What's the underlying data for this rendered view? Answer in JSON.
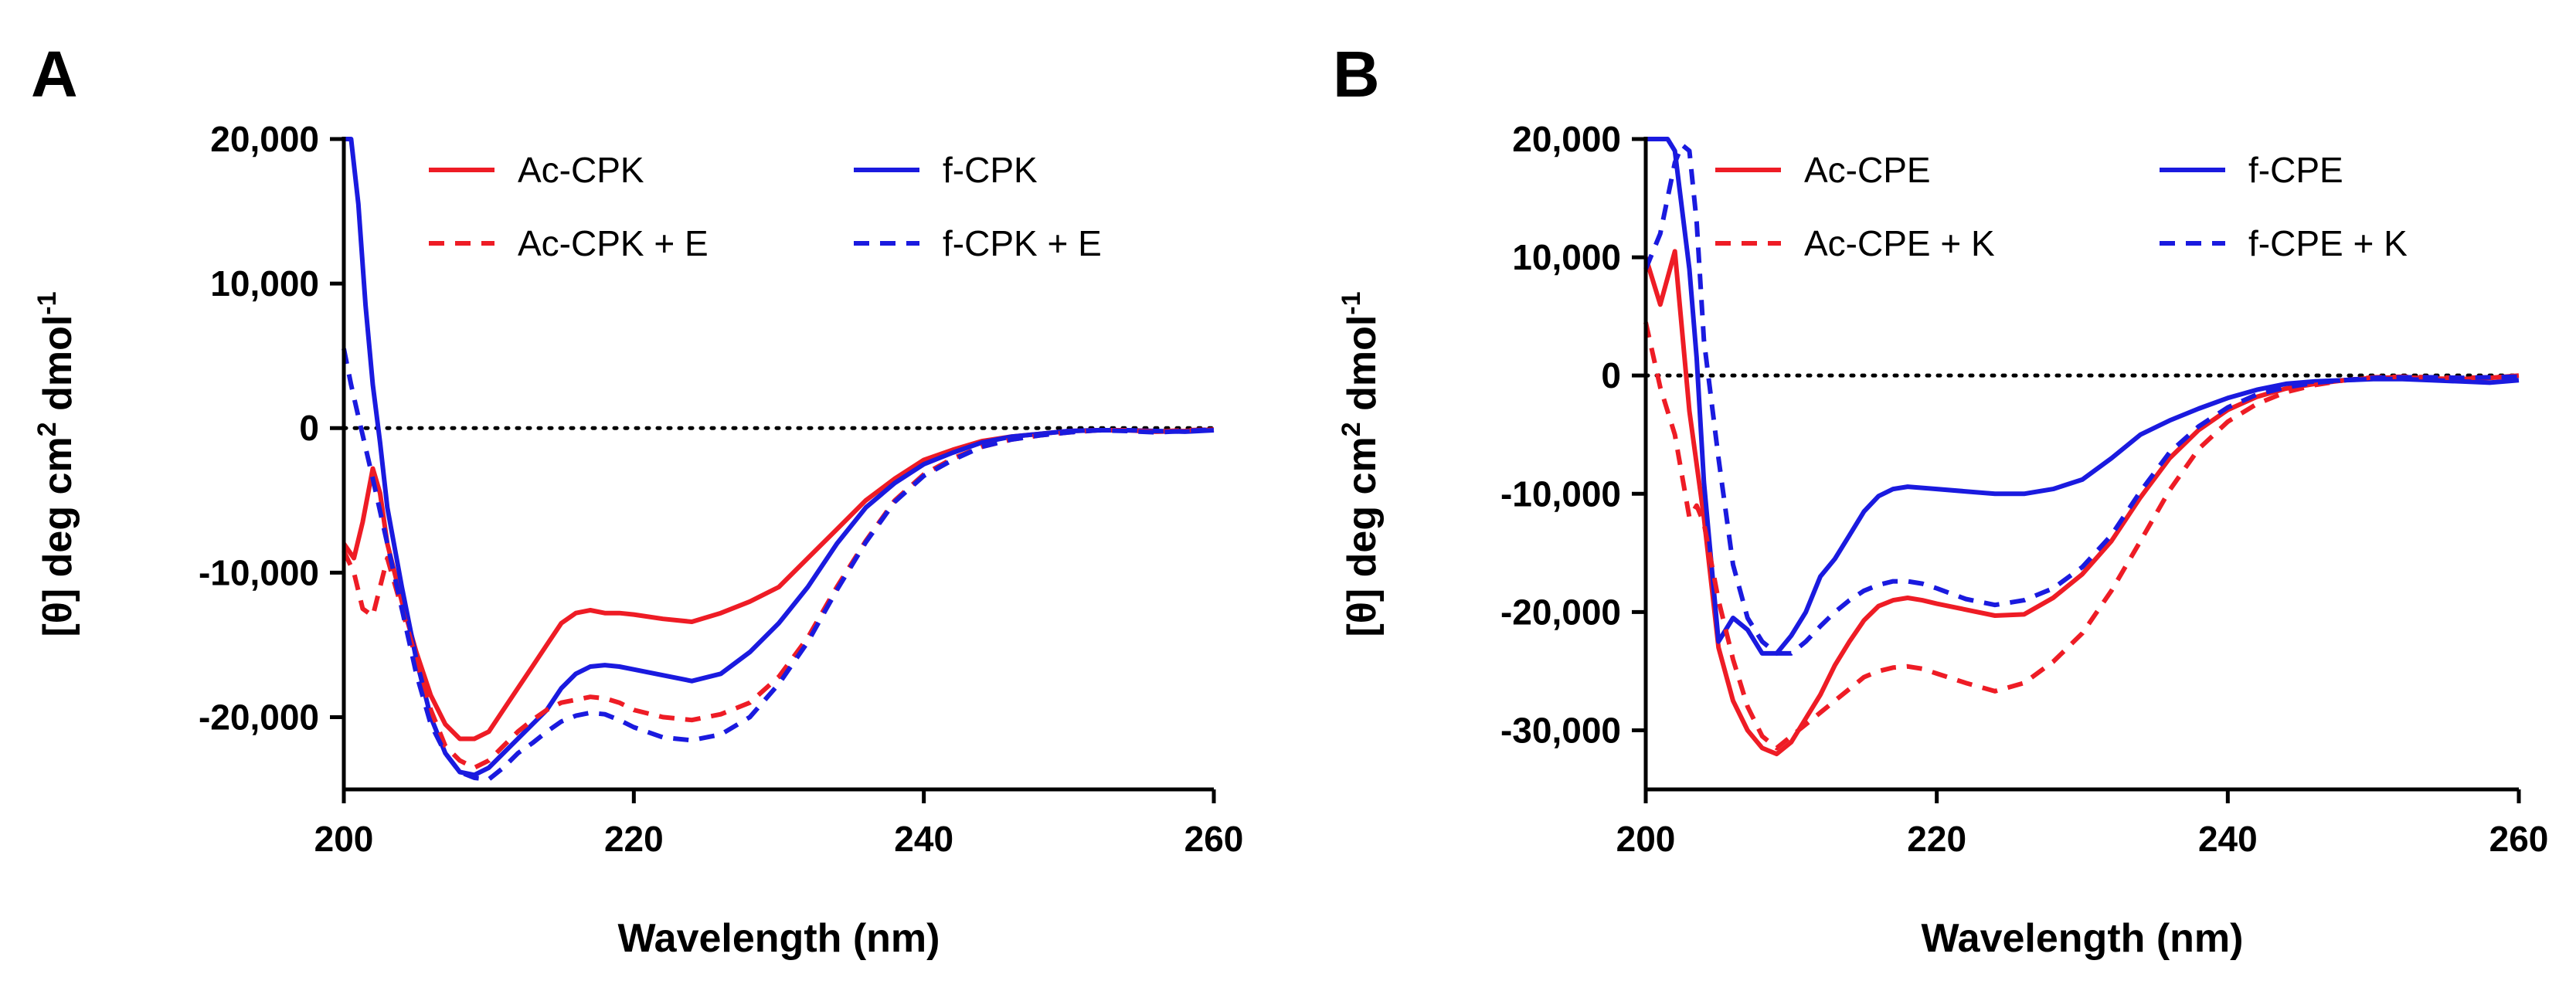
{
  "chart_data": [
    {
      "panel": "A",
      "type": "line",
      "title": "",
      "xlabel": "Wavelength (nm)",
      "ylabel": "[θ] deg cm",
      "ylabel_sup1": "2",
      "ylabel_mid": " dmol",
      "ylabel_sup2": "-1",
      "xlim": [
        200,
        260
      ],
      "ylim": [
        -25000,
        20000
      ],
      "xticks": [
        200,
        220,
        240,
        260
      ],
      "xtick_labels": [
        "200",
        "220",
        "240",
        "260"
      ],
      "yticks": [
        20000,
        10000,
        0,
        -10000,
        -20000
      ],
      "ytick_labels": [
        "20,000",
        "10,000",
        "0",
        "-10,000",
        "-20,000"
      ],
      "reference_line": 0,
      "legend": "top",
      "series": [
        {
          "name": "Ac-CPK",
          "color": "#ee1c25",
          "dash": "solid",
          "x": [
            200,
            200.7,
            201.3,
            202,
            202.5,
            203,
            204,
            205,
            206,
            207,
            208,
            209,
            210,
            211,
            212,
            213,
            214,
            215,
            216,
            217,
            218,
            219,
            220,
            222,
            224,
            226,
            228,
            230,
            232,
            234,
            236,
            238,
            240,
            242,
            244,
            246,
            248,
            250,
            252,
            254,
            256,
            258,
            260
          ],
          "y": [
            -8000,
            -9000,
            -6500,
            -2800,
            -4500,
            -8000,
            -12000,
            -15500,
            -18500,
            -20500,
            -21500,
            -21500,
            -21000,
            -19500,
            -18000,
            -16500,
            -15000,
            -13500,
            -12800,
            -12600,
            -12800,
            -12800,
            -12900,
            -13200,
            -13400,
            -12800,
            -12000,
            -11000,
            -9000,
            -7000,
            -5000,
            -3500,
            -2200,
            -1500,
            -900,
            -600,
            -400,
            -200,
            -150,
            -150,
            -250,
            -200,
            -100
          ]
        },
        {
          "name": "f-CPK",
          "color": "#1a1adf",
          "dash": "solid",
          "x": [
            200,
            200.5,
            201,
            201.5,
            202,
            202.5,
            203,
            204,
            205,
            206,
            207,
            208,
            209,
            210,
            211,
            212,
            213,
            214,
            215,
            216,
            217,
            218,
            219,
            220,
            222,
            224,
            226,
            228,
            230,
            232,
            234,
            236,
            238,
            240,
            242,
            244,
            246,
            248,
            250,
            252,
            254,
            256,
            258,
            260
          ],
          "y": [
            20000,
            20000,
            15500,
            8500,
            3000,
            -1000,
            -5500,
            -11000,
            -16000,
            -20000,
            -22500,
            -23800,
            -24000,
            -23500,
            -22500,
            -21500,
            -20500,
            -19500,
            -18000,
            -17000,
            -16500,
            -16400,
            -16500,
            -16700,
            -17100,
            -17500,
            -17000,
            -15500,
            -13500,
            -11000,
            -8000,
            -5500,
            -3800,
            -2500,
            -1700,
            -1000,
            -600,
            -400,
            -200,
            -150,
            -150,
            -200,
            -250,
            -150
          ]
        },
        {
          "name": "Ac-CPK + E",
          "color": "#ee1c25",
          "dash": "dashed",
          "x": [
            200,
            200.7,
            201.3,
            202,
            202.5,
            203,
            204,
            205,
            206,
            207,
            208,
            209,
            210,
            211,
            212,
            213,
            214,
            215,
            216,
            217,
            218,
            219,
            220,
            222,
            224,
            226,
            228,
            230,
            232,
            234,
            236,
            238,
            240,
            242,
            244,
            246,
            248,
            250,
            252,
            254,
            256,
            258,
            260
          ],
          "y": [
            -8500,
            -10000,
            -12500,
            -13000,
            -11000,
            -9000,
            -12500,
            -16000,
            -19500,
            -22000,
            -23000,
            -23500,
            -23000,
            -22000,
            -21000,
            -20200,
            -19500,
            -19000,
            -18800,
            -18600,
            -18700,
            -19000,
            -19500,
            -20000,
            -20200,
            -19800,
            -19000,
            -17200,
            -14500,
            -11000,
            -7800,
            -5000,
            -3200,
            -2100,
            -1300,
            -800,
            -500,
            -300,
            -150,
            -150,
            -250,
            -150,
            -100
          ]
        },
        {
          "name": "f-CPK + E",
          "color": "#1a1adf",
          "dash": "dashed",
          "x": [
            200,
            200.5,
            201,
            202,
            203,
            204,
            205,
            206,
            207,
            208,
            209,
            210,
            211,
            212,
            213,
            214,
            215,
            216,
            217,
            218,
            219,
            220,
            222,
            224,
            226,
            228,
            230,
            232,
            234,
            236,
            238,
            240,
            242,
            244,
            246,
            248,
            250,
            252,
            254,
            256,
            258,
            260
          ],
          "y": [
            5500,
            3000,
            800,
            -3500,
            -8000,
            -12500,
            -17000,
            -20500,
            -22500,
            -23800,
            -24200,
            -24300,
            -23500,
            -22500,
            -21800,
            -21000,
            -20300,
            -19900,
            -19700,
            -19800,
            -20200,
            -20700,
            -21400,
            -21600,
            -21200,
            -20000,
            -17700,
            -14800,
            -11200,
            -7900,
            -5100,
            -3300,
            -2200,
            -1300,
            -800,
            -500,
            -300,
            -150,
            -200,
            -300,
            -200,
            -100
          ]
        }
      ]
    },
    {
      "panel": "B",
      "type": "line",
      "title": "",
      "xlabel": "Wavelength (nm)",
      "ylabel": "[θ] deg cm",
      "ylabel_sup1": "2",
      "ylabel_mid": " dmol",
      "ylabel_sup2": "-1",
      "xlim": [
        200,
        260
      ],
      "ylim": [
        -35000,
        20000
      ],
      "xticks": [
        200,
        220,
        240,
        260
      ],
      "xtick_labels": [
        "200",
        "220",
        "240",
        "260"
      ],
      "yticks": [
        20000,
        10000,
        0,
        -10000,
        -20000,
        -30000
      ],
      "ytick_labels": [
        "20,000",
        "10,000",
        "0",
        "-10,000",
        "-20,000",
        "-30,000"
      ],
      "reference_line": 0,
      "legend": "top",
      "series": [
        {
          "name": "Ac-CPE",
          "color": "#ee1c25",
          "dash": "solid",
          "x": [
            200,
            201,
            202,
            203,
            204,
            205,
            206,
            207,
            208,
            209,
            210,
            211,
            212,
            213,
            214,
            215,
            216,
            217,
            218,
            219,
            220,
            222,
            224,
            226,
            228,
            230,
            232,
            234,
            236,
            238,
            240,
            242,
            244,
            246,
            248,
            250,
            252,
            254,
            256,
            258,
            260
          ],
          "y": [
            10000,
            6000,
            10500,
            -3000,
            -12000,
            -23000,
            -27500,
            -30000,
            -31500,
            -32000,
            -31000,
            -29000,
            -27000,
            -24500,
            -22500,
            -20700,
            -19500,
            -19000,
            -18800,
            -19000,
            -19300,
            -19800,
            -20300,
            -20200,
            -18800,
            -16800,
            -14000,
            -10300,
            -7000,
            -4600,
            -2900,
            -1800,
            -1100,
            -700,
            -400,
            -200,
            -150,
            -250,
            -300,
            -200,
            0
          ]
        },
        {
          "name": "f-CPE",
          "color": "#1a1adf",
          "dash": "solid",
          "x": [
            200,
            201,
            201.5,
            202,
            202.5,
            203,
            203.5,
            204,
            205,
            206,
            207,
            208,
            209,
            210,
            211,
            212,
            213,
            214,
            215,
            216,
            217,
            218,
            219,
            220,
            222,
            224,
            226,
            228,
            230,
            232,
            234,
            236,
            238,
            240,
            242,
            244,
            246,
            248,
            250,
            252,
            254,
            256,
            258,
            260
          ],
          "y": [
            20000,
            20000,
            20000,
            19000,
            14000,
            9000,
            1500,
            -9000,
            -22500,
            -20500,
            -21500,
            -23500,
            -23500,
            -22000,
            -20000,
            -17000,
            -15500,
            -13500,
            -11500,
            -10200,
            -9600,
            -9400,
            -9500,
            -9600,
            -9800,
            -10000,
            -10000,
            -9600,
            -8800,
            -7000,
            -5000,
            -3800,
            -2800,
            -1900,
            -1200,
            -700,
            -500,
            -400,
            -300,
            -300,
            -400,
            -500,
            -600,
            -400
          ]
        },
        {
          "name": "Ac-CPE + K",
          "color": "#ee1c25",
          "dash": "dashed",
          "x": [
            200,
            201,
            202,
            203,
            203.5,
            204,
            205,
            206,
            207,
            208,
            209,
            210,
            211,
            212,
            213,
            214,
            215,
            216,
            217,
            218,
            219,
            220,
            222,
            224,
            226,
            228,
            230,
            232,
            234,
            236,
            238,
            240,
            242,
            244,
            246,
            248,
            250,
            252,
            254,
            256,
            258,
            260
          ],
          "y": [
            4500,
            -1000,
            -5000,
            -12000,
            -11000,
            -12500,
            -19000,
            -24000,
            -28000,
            -30500,
            -31500,
            -30500,
            -29500,
            -28500,
            -27500,
            -26500,
            -25500,
            -25000,
            -24700,
            -24600,
            -24800,
            -25200,
            -26000,
            -26700,
            -26000,
            -24200,
            -21800,
            -18200,
            -14000,
            -9700,
            -6200,
            -3900,
            -2400,
            -1400,
            -800,
            -400,
            -150,
            -100,
            -150,
            -200,
            -150,
            -100
          ]
        },
        {
          "name": "f-CPE + K",
          "color": "#1a1adf",
          "dash": "dashed",
          "x": [
            200,
            201,
            202,
            202.5,
            203,
            203.5,
            204,
            205,
            206,
            207,
            208,
            209,
            210,
            211,
            212,
            213,
            214,
            215,
            216,
            217,
            218,
            219,
            220,
            222,
            224,
            226,
            228,
            230,
            232,
            234,
            236,
            238,
            240,
            242,
            244,
            246,
            248,
            250,
            252,
            254,
            256,
            258,
            260
          ],
          "y": [
            9000,
            12000,
            18000,
            19500,
            19000,
            13000,
            3000,
            -7000,
            -16000,
            -20500,
            -22500,
            -23500,
            -23500,
            -22500,
            -21200,
            -20000,
            -19000,
            -18200,
            -17700,
            -17400,
            -17400,
            -17600,
            -18000,
            -18900,
            -19400,
            -19000,
            -18000,
            -16200,
            -13500,
            -9800,
            -6500,
            -4300,
            -2700,
            -1600,
            -1000,
            -600,
            -400,
            -200,
            -150,
            -150,
            -200,
            -150,
            -100
          ]
        }
      ]
    }
  ]
}
